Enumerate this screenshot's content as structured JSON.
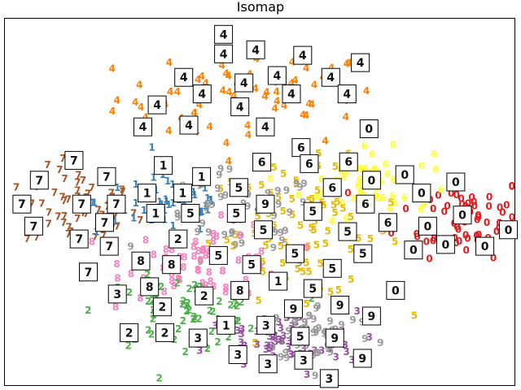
{
  "chart_data": {
    "type": "scatter",
    "title": "Isomap",
    "xlabel": "",
    "ylabel": "",
    "xlim": [
      0,
      1000
    ],
    "ylim": [
      0,
      1000
    ],
    "grid": false,
    "ticks": false,
    "colors": {
      "0": "#e41a1c",
      "1": "#377eb8",
      "2": "#4daf4a",
      "3": "#984ea3",
      "4": "#ff7f00",
      "5": "#e6b800",
      "6": "#ffff33",
      "7": "#a65628",
      "8": "#f781bf",
      "9": "#999999"
    },
    "clusters": [
      {
        "label": "4",
        "cx": 480,
        "cy": 780,
        "sx": 130,
        "sy": 65,
        "n": 70
      },
      {
        "label": "7",
        "cx": 150,
        "cy": 480,
        "sx": 55,
        "sy": 55,
        "n": 55
      },
      {
        "label": "0",
        "cx": 900,
        "cy": 460,
        "sx": 65,
        "sy": 55,
        "n": 60
      },
      {
        "label": "6",
        "cx": 710,
        "cy": 550,
        "sx": 65,
        "sy": 45,
        "n": 60
      },
      {
        "label": "5",
        "cx": 590,
        "cy": 420,
        "sx": 95,
        "sy": 90,
        "n": 80
      },
      {
        "label": "1",
        "cx": 320,
        "cy": 500,
        "sx": 70,
        "sy": 45,
        "n": 55
      },
      {
        "label": "9",
        "cx": 460,
        "cy": 440,
        "sx": 80,
        "sy": 70,
        "n": 55
      },
      {
        "label": "8",
        "cx": 400,
        "cy": 340,
        "sx": 80,
        "sy": 50,
        "n": 65
      },
      {
        "label": "2",
        "cx": 350,
        "cy": 200,
        "sx": 80,
        "sy": 45,
        "n": 65
      },
      {
        "label": "3",
        "cx": 540,
        "cy": 110,
        "sx": 75,
        "sy": 45,
        "n": 65
      },
      {
        "label": "9",
        "cx": 620,
        "cy": 140,
        "sx": 55,
        "sy": 40,
        "n": 50
      }
    ],
    "thumbnails": [
      {
        "digit": "4",
        "x": 430,
        "y": 955
      },
      {
        "digit": "4",
        "x": 430,
        "y": 902
      },
      {
        "digit": "4",
        "x": 493,
        "y": 913
      },
      {
        "digit": "4",
        "x": 585,
        "y": 898
      },
      {
        "digit": "4",
        "x": 698,
        "y": 878
      },
      {
        "digit": "4",
        "x": 640,
        "y": 838
      },
      {
        "digit": "4",
        "x": 535,
        "y": 843
      },
      {
        "digit": "4",
        "x": 470,
        "y": 823
      },
      {
        "digit": "4",
        "x": 352,
        "y": 838
      },
      {
        "digit": "4",
        "x": 388,
        "y": 793
      },
      {
        "digit": "4",
        "x": 563,
        "y": 793
      },
      {
        "digit": "4",
        "x": 672,
        "y": 793
      },
      {
        "digit": "4",
        "x": 300,
        "y": 763
      },
      {
        "digit": "4",
        "x": 462,
        "y": 758
      },
      {
        "digit": "4",
        "x": 272,
        "y": 703
      },
      {
        "digit": "4",
        "x": 362,
        "y": 708
      },
      {
        "digit": "4",
        "x": 512,
        "y": 703
      },
      {
        "digit": "0",
        "x": 715,
        "y": 698
      },
      {
        "digit": "6",
        "x": 582,
        "y": 647
      },
      {
        "digit": "7",
        "x": 137,
        "y": 612
      },
      {
        "digit": "6",
        "x": 505,
        "y": 607
      },
      {
        "digit": "6",
        "x": 598,
        "y": 603
      },
      {
        "digit": "6",
        "x": 675,
        "y": 608
      },
      {
        "digit": "1",
        "x": 312,
        "y": 598
      },
      {
        "digit": "1",
        "x": 387,
        "y": 568
      },
      {
        "digit": "7",
        "x": 69,
        "y": 558
      },
      {
        "digit": "7",
        "x": 201,
        "y": 568
      },
      {
        "digit": "0",
        "x": 720,
        "y": 558
      },
      {
        "digit": "0",
        "x": 785,
        "y": 573
      },
      {
        "digit": "0",
        "x": 885,
        "y": 553
      },
      {
        "digit": "6",
        "x": 643,
        "y": 538
      },
      {
        "digit": "5",
        "x": 460,
        "y": 538
      },
      {
        "digit": "1",
        "x": 280,
        "y": 523
      },
      {
        "digit": "1",
        "x": 350,
        "y": 523
      },
      {
        "digit": "0",
        "x": 818,
        "y": 523
      },
      {
        "digit": "7",
        "x": 35,
        "y": 493
      },
      {
        "digit": "7",
        "x": 152,
        "y": 493
      },
      {
        "digit": "7",
        "x": 220,
        "y": 493
      },
      {
        "digit": "9",
        "x": 512,
        "y": 493
      },
      {
        "digit": "6",
        "x": 708,
        "y": 493
      },
      {
        "digit": "1",
        "x": 297,
        "y": 468
      },
      {
        "digit": "5",
        "x": 365,
        "y": 468
      },
      {
        "digit": "5",
        "x": 455,
        "y": 468
      },
      {
        "digit": "5",
        "x": 605,
        "y": 473
      },
      {
        "digit": "6",
        "x": 752,
        "y": 443
      },
      {
        "digit": "0",
        "x": 830,
        "y": 433
      },
      {
        "digit": "0",
        "x": 898,
        "y": 463
      },
      {
        "digit": "7",
        "x": 58,
        "y": 433
      },
      {
        "digit": "7",
        "x": 197,
        "y": 443
      },
      {
        "digit": "0",
        "x": 988,
        "y": 423
      },
      {
        "digit": "5",
        "x": 508,
        "y": 423
      },
      {
        "digit": "5",
        "x": 673,
        "y": 418
      },
      {
        "digit": "2",
        "x": 341,
        "y": 398
      },
      {
        "digit": "7",
        "x": 147,
        "y": 398
      },
      {
        "digit": "7",
        "x": 206,
        "y": 378
      },
      {
        "digit": "0",
        "x": 865,
        "y": 383
      },
      {
        "digit": "0",
        "x": 942,
        "y": 378
      },
      {
        "digit": "0",
        "x": 802,
        "y": 368
      },
      {
        "digit": "5",
        "x": 420,
        "y": 353
      },
      {
        "digit": "5",
        "x": 570,
        "y": 358
      },
      {
        "digit": "5",
        "x": 703,
        "y": 358
      },
      {
        "digit": "8",
        "x": 268,
        "y": 338
      },
      {
        "digit": "8",
        "x": 328,
        "y": 328
      },
      {
        "digit": "5",
        "x": 485,
        "y": 328
      },
      {
        "digit": "5",
        "x": 643,
        "y": 318
      },
      {
        "digit": "7",
        "x": 165,
        "y": 308
      },
      {
        "digit": "1",
        "x": 537,
        "y": 283
      },
      {
        "digit": "8",
        "x": 285,
        "y": 268
      },
      {
        "digit": "5",
        "x": 605,
        "y": 263
      },
      {
        "digit": "0",
        "x": 767,
        "y": 258
      },
      {
        "digit": "8",
        "x": 462,
        "y": 258
      },
      {
        "digit": "3",
        "x": 222,
        "y": 248
      },
      {
        "digit": "2",
        "x": 392,
        "y": 243
      },
      {
        "digit": "9",
        "x": 567,
        "y": 208
      },
      {
        "digit": "9",
        "x": 658,
        "y": 218
      },
      {
        "digit": "9",
        "x": 720,
        "y": 188
      },
      {
        "digit": "2",
        "x": 310,
        "y": 213
      },
      {
        "digit": "1",
        "x": 435,
        "y": 163
      },
      {
        "digit": "3",
        "x": 513,
        "y": 163
      },
      {
        "digit": "2",
        "x": 245,
        "y": 143
      },
      {
        "digit": "2",
        "x": 315,
        "y": 143
      },
      {
        "digit": "3",
        "x": 380,
        "y": 128
      },
      {
        "digit": "5",
        "x": 580,
        "y": 133
      },
      {
        "digit": "9",
        "x": 648,
        "y": 128
      },
      {
        "digit": "3",
        "x": 458,
        "y": 83
      },
      {
        "digit": "3",
        "x": 517,
        "y": 58
      },
      {
        "digit": "3",
        "x": 587,
        "y": 68
      },
      {
        "digit": "9",
        "x": 702,
        "y": 73
      },
      {
        "digit": "3",
        "x": 637,
        "y": 18
      }
    ]
  }
}
